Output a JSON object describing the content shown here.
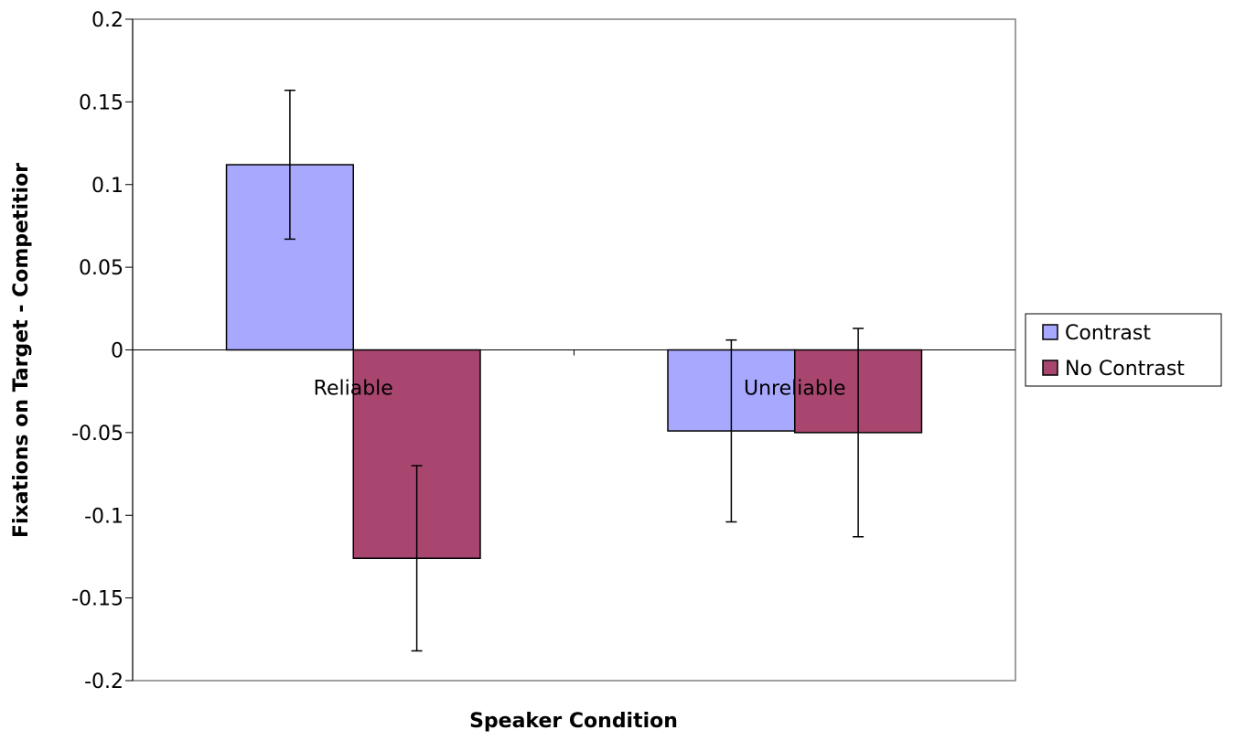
{
  "chart_data": {
    "type": "bar",
    "categories": [
      "Reliable",
      "Unreliable"
    ],
    "series": [
      {
        "name": "Contrast",
        "values": [
          0.112,
          -0.049
        ],
        "errors": [
          0.045,
          0.055
        ],
        "color": "#a8a8ff"
      },
      {
        "name": "No Contrast",
        "values": [
          -0.126,
          -0.05
        ],
        "errors": [
          0.056,
          0.063
        ],
        "color": "#a8466f"
      }
    ],
    "ylim": [
      -0.2,
      0.2
    ],
    "yticks": [
      {
        "value": 0.2,
        "label": "0.2"
      },
      {
        "value": 0.15,
        "label": "0.15"
      },
      {
        "value": 0.1,
        "label": "0.1"
      },
      {
        "value": 0.05,
        "label": "0.05"
      },
      {
        "value": 0,
        "label": "0"
      },
      {
        "value": -0.05,
        "label": "-0.05"
      },
      {
        "value": -0.1,
        "label": "-0.1"
      },
      {
        "value": -0.15,
        "label": "-0.15"
      },
      {
        "value": -0.2,
        "label": "-0.2"
      }
    ],
    "xlabel": "Speaker Condition",
    "ylabel": "Fixations on Target - Competitior",
    "grid": false,
    "legend_position": "right"
  }
}
